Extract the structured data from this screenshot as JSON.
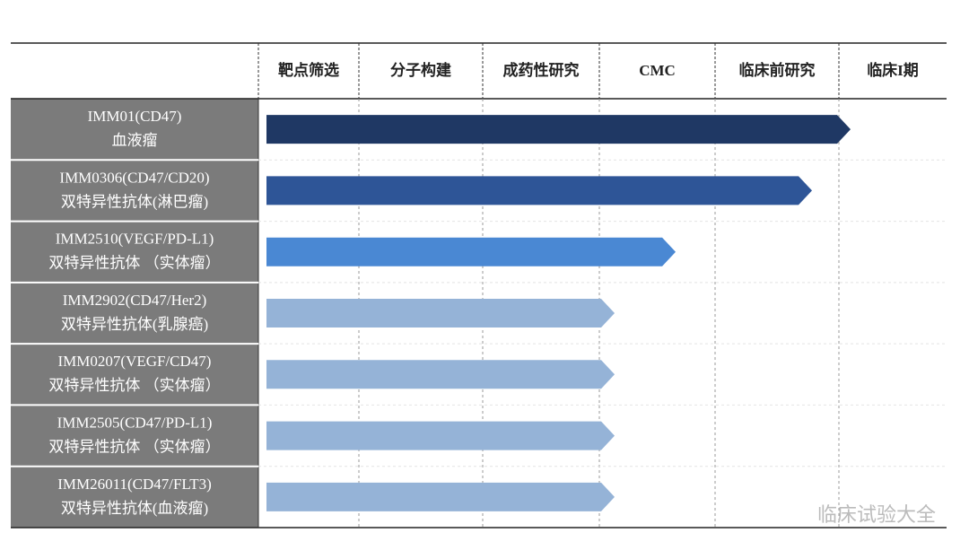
{
  "header": {
    "columns": [
      "靶点筛选",
      "分子构建",
      "成药性研究",
      "CMC",
      "临床前研究",
      "临床I期"
    ]
  },
  "rows": [
    {
      "name": "IMM01(CD47)",
      "indication": "血液瘤"
    },
    {
      "name": "IMM0306(CD47/CD20)",
      "indication": "双特异性抗体(淋巴瘤)"
    },
    {
      "name": "IMM2510(VEGF/PD-L1)",
      "indication": "双特异性抗体 （实体瘤）"
    },
    {
      "name": "IMM2902(CD47/Her2)",
      "indication": "双特异性抗体(乳腺癌)"
    },
    {
      "name": "IMM0207(VEGF/CD47)",
      "indication": "双特异性抗体 （实体瘤）"
    },
    {
      "name": "IMM2505(CD47/PD-L1)",
      "indication": "双特异性抗体 （实体瘤）"
    },
    {
      "name": "IMM26011(CD47/FLT3)",
      "indication": "双特异性抗体(血液瘤)"
    }
  ],
  "watermark": "临床试验大全"
}
